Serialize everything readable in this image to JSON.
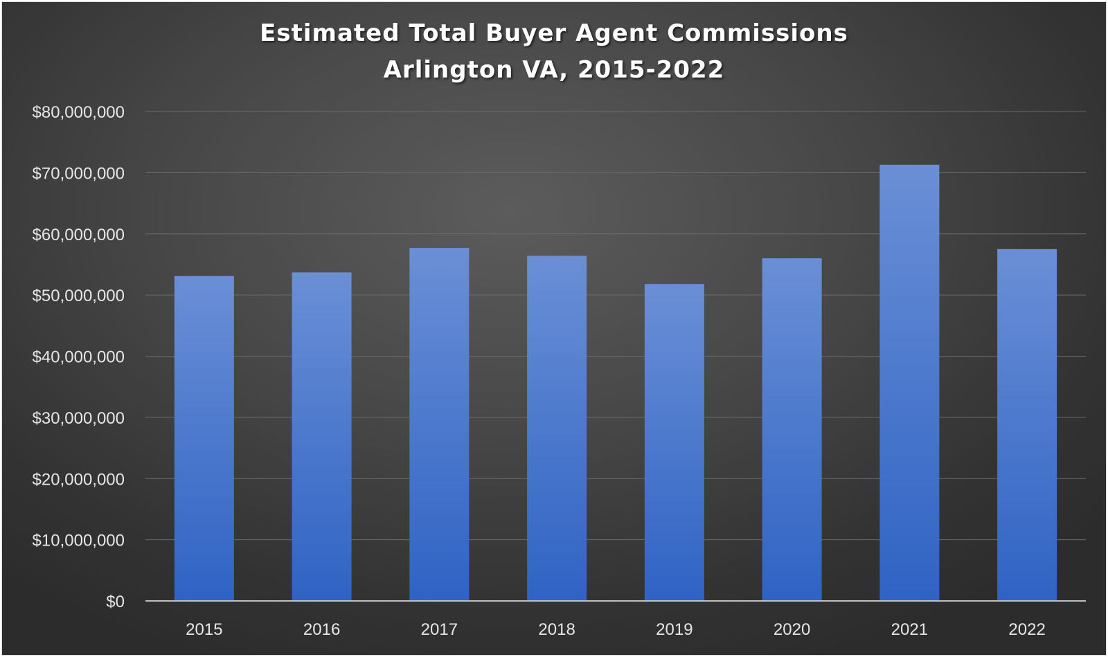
{
  "chart_data": {
    "type": "bar",
    "title": "Estimated Total Buyer Agent Commissions",
    "subtitle": "Arlington VA, 2015-2022",
    "xlabel": "",
    "ylabel": "",
    "categories": [
      "2015",
      "2016",
      "2017",
      "2018",
      "2019",
      "2020",
      "2021",
      "2022"
    ],
    "values": [
      53100000,
      53700000,
      57700000,
      56400000,
      51800000,
      56000000,
      71300000,
      57500000
    ],
    "ylim": [
      0,
      80000000
    ],
    "yticks": [
      0,
      10000000,
      20000000,
      30000000,
      40000000,
      50000000,
      60000000,
      70000000,
      80000000
    ],
    "ytick_labels": [
      "$0",
      "$10,000,000",
      "$20,000,000",
      "$30,000,000",
      "$40,000,000",
      "$50,000,000",
      "$60,000,000",
      "$70,000,000",
      "$80,000,000"
    ],
    "grid": true,
    "legend": "none",
    "colors": {
      "bar_top": "#6a8fd6",
      "bar_bottom": "#2f63c4",
      "grid": "#6b6b6b",
      "axis": "#bfbfbf",
      "text": "#e6e6e6"
    }
  }
}
